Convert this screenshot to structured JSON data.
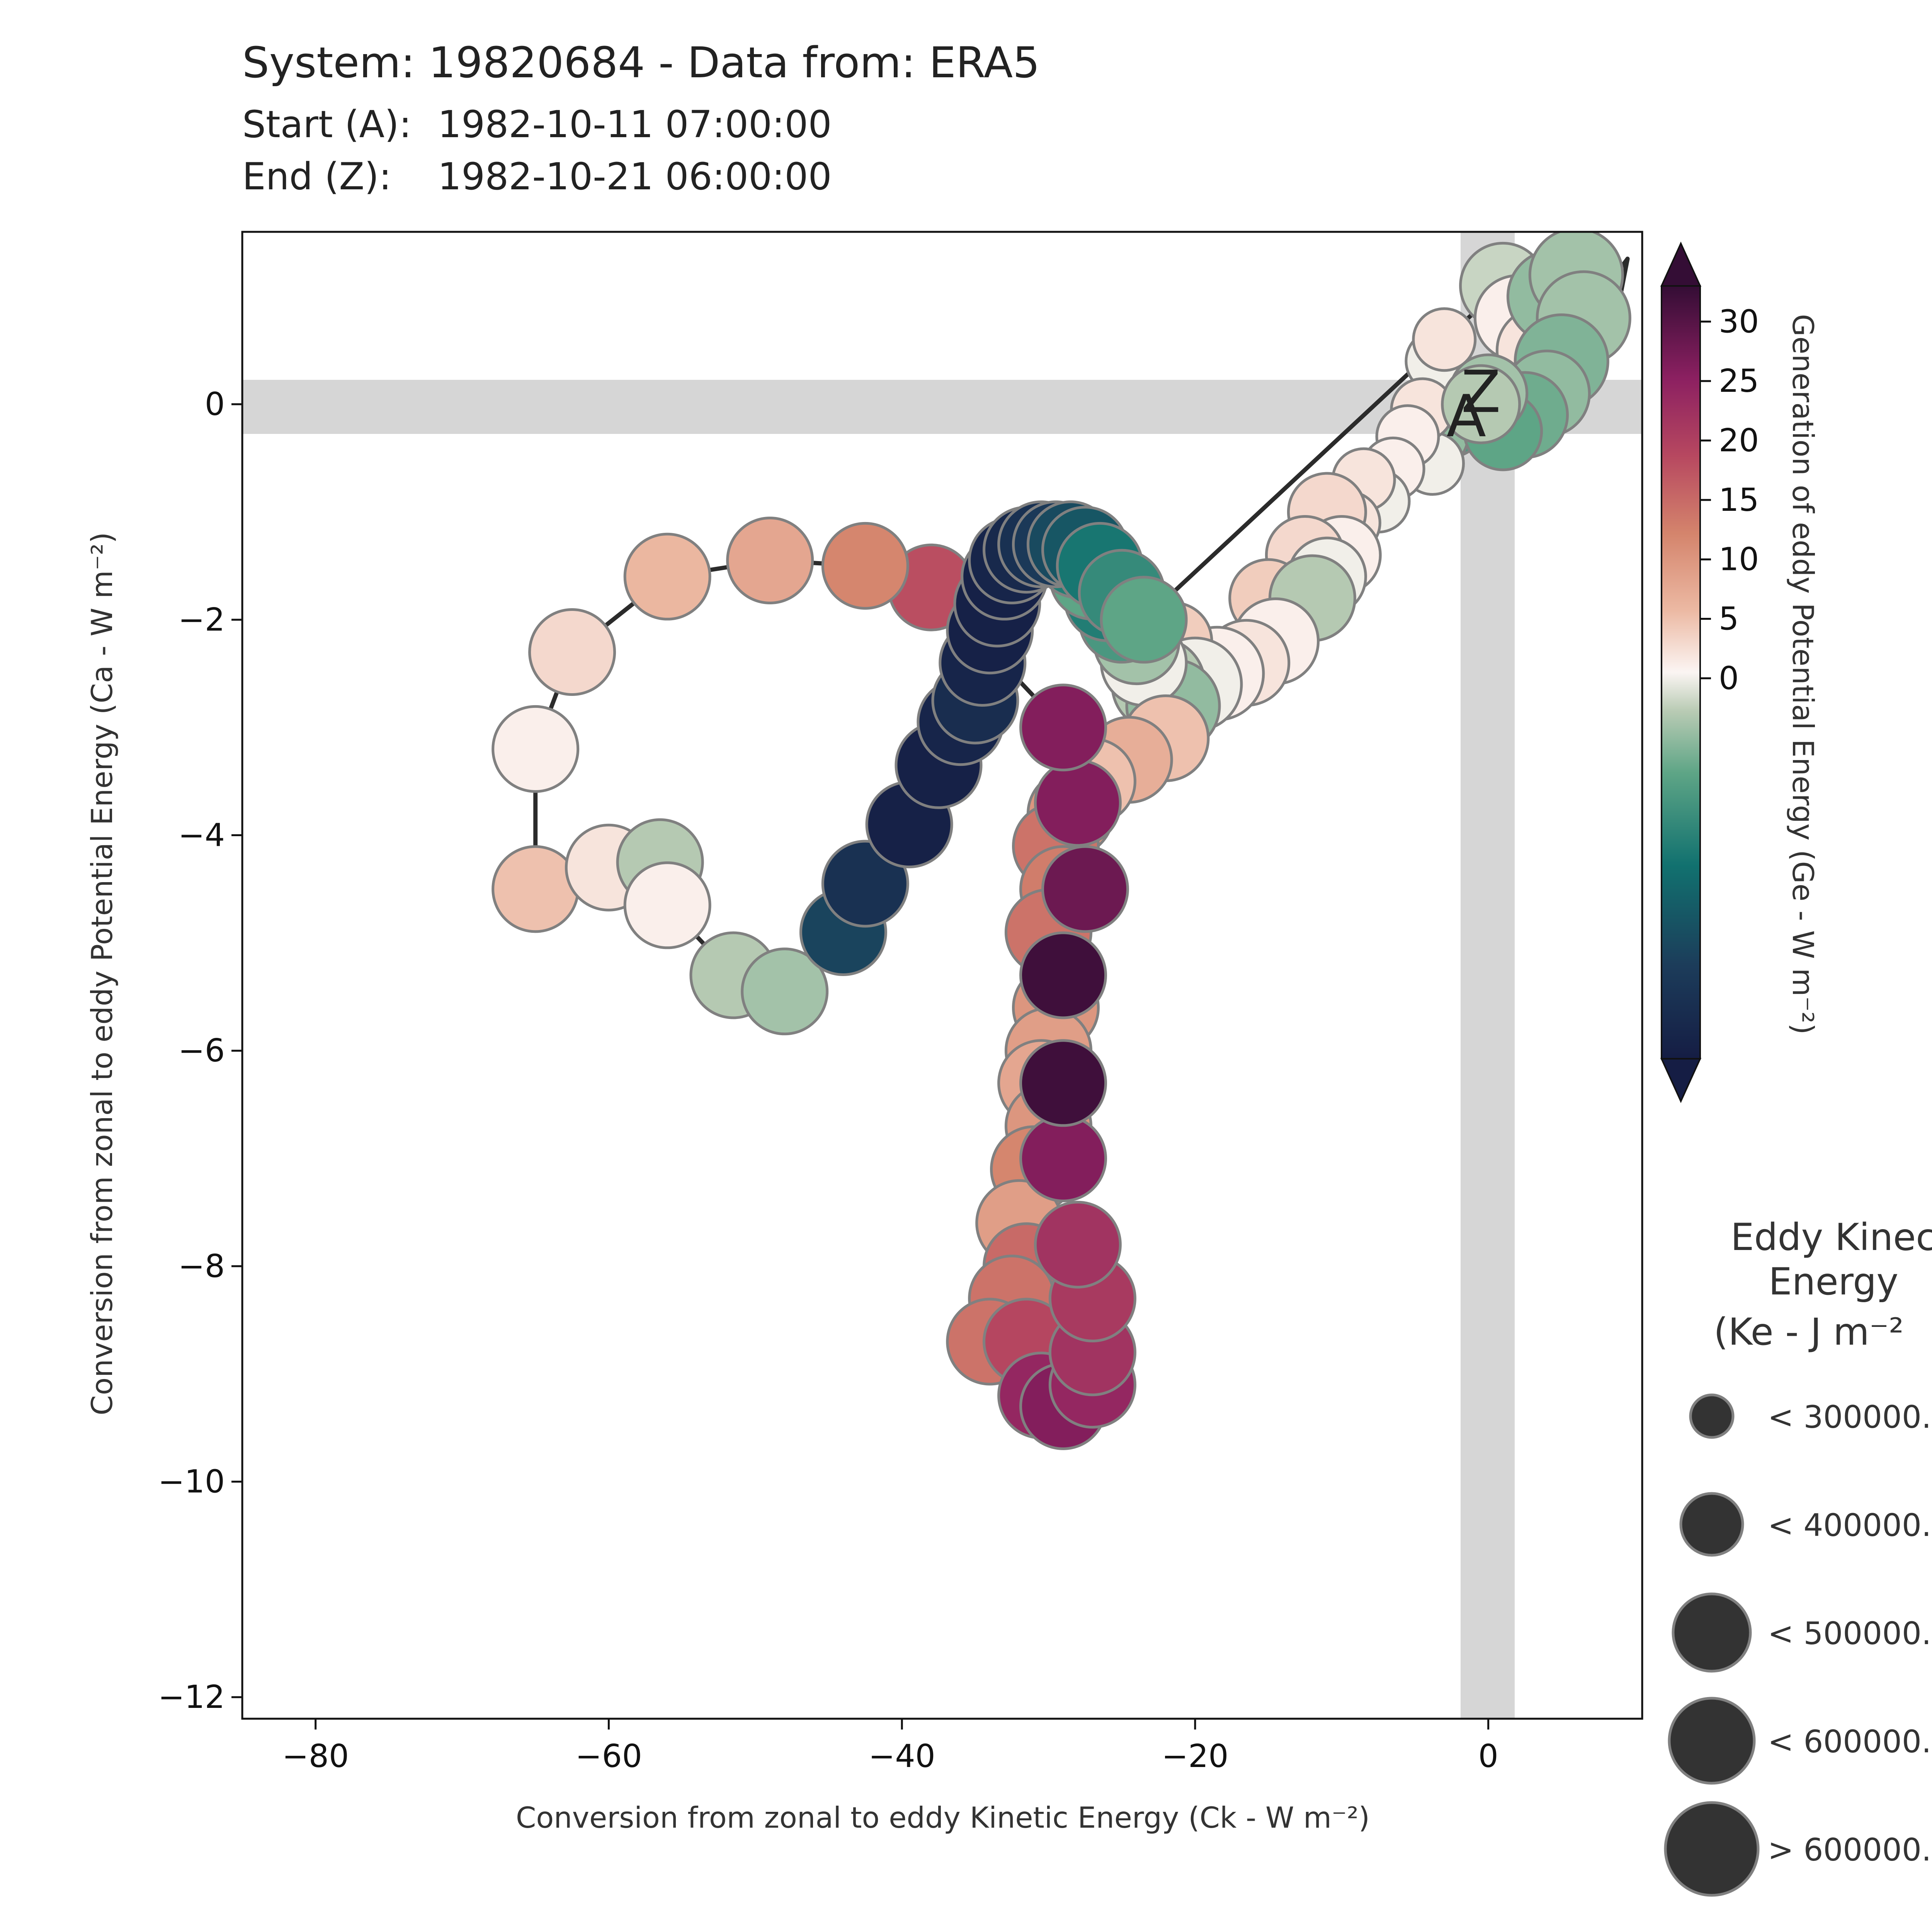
{
  "header": {
    "title": "System: 19820684 - Data from: ERA5",
    "start_label": "Start (A):",
    "start_value": "1982-10-11 07:00:00",
    "end_label": "End (Z):",
    "end_value": "1982-10-21 06:00:00"
  },
  "chart_data": {
    "type": "scatter",
    "title": "System: 19820684 - Data from: ERA5",
    "xlabel": "Conversion from zonal to eddy Kinetic Energy (Ck -  W m⁻²)",
    "ylabel": "Conversion from zonal to eddy Potential Energy (Ca -  W m⁻²)",
    "xlim": [
      -85,
      10.5
    ],
    "ylim": [
      -12.2,
      1.6
    ],
    "x_ticks": [
      -80,
      -60,
      -40,
      -20,
      0
    ],
    "y_ticks": [
      0,
      -2,
      -4,
      -6,
      -8,
      -10,
      -12
    ],
    "x_tick_labels": [
      "−80",
      "−60",
      "−40",
      "−20",
      "0"
    ],
    "y_tick_labels": [
      "0",
      "−2",
      "−4",
      "−6",
      "−8",
      "−10",
      "−12"
    ],
    "start_marker": "A",
    "end_marker": "Z",
    "start_point": {
      "x": -1.5,
      "y": -0.1
    },
    "end_point": {
      "x": -0.5,
      "y": 0.0
    },
    "colorbar": {
      "label": "Generation of eddy Potential Energy (Ge -  W m⁻²)",
      "ticks": [
        0,
        5,
        10,
        15,
        20,
        25,
        30
      ],
      "tick_labels": [
        "0",
        "5",
        "10",
        "15",
        "20",
        "25",
        "30"
      ],
      "min": -32,
      "max": 33,
      "colormap": "curl",
      "extend": "both"
    },
    "size_legend": {
      "title_lines": [
        "Eddy Kinec",
        "Energy",
        "(Ke -  J m⁻²"
      ],
      "entries": [
        "< 300000.",
        "< 400000.",
        "< 500000.",
        "< 600000.",
        "> 600000."
      ],
      "marker_color": "#333333"
    },
    "points": [
      {
        "x": -1.5,
        "y": -0.1,
        "ge": -8,
        "ke": 1
      },
      {
        "x": -2.5,
        "y": -0.2,
        "ge": -10,
        "ke": 1
      },
      {
        "x": -3.5,
        "y": -0.3,
        "ge": -5,
        "ke": 1
      },
      {
        "x": -3.8,
        "y": -0.55,
        "ge": 0,
        "ke": 1
      },
      {
        "x": -3.5,
        "y": 0.4,
        "ge": 0,
        "ke": 1
      },
      {
        "x": -3.0,
        "y": 0.6,
        "ge": 2,
        "ke": 1
      },
      {
        "x": -4.5,
        "y": -0.05,
        "ge": 2,
        "ke": 1
      },
      {
        "x": -5.5,
        "y": -0.3,
        "ge": 1,
        "ke": 1
      },
      {
        "x": -6.5,
        "y": -0.6,
        "ge": 1,
        "ke": 1
      },
      {
        "x": -7.5,
        "y": -0.9,
        "ge": 0,
        "ke": 1
      },
      {
        "x": -8.5,
        "y": -0.7,
        "ge": 2,
        "ke": 1
      },
      {
        "x": -9.5,
        "y": -1.1,
        "ge": 2,
        "ke": 1
      },
      {
        "x": -11.0,
        "y": -1.0,
        "ge": 3,
        "ke": 2
      },
      {
        "x": -10.0,
        "y": -1.4,
        "ge": 1,
        "ke": 2
      },
      {
        "x": -12.5,
        "y": -1.4,
        "ge": 3,
        "ke": 2
      },
      {
        "x": -11.0,
        "y": -1.6,
        "ge": 0,
        "ke": 2
      },
      {
        "x": -15.0,
        "y": -1.8,
        "ge": 4,
        "ke": 2
      },
      {
        "x": -12.0,
        "y": -1.8,
        "ge": -3,
        "ke": 3
      },
      {
        "x": -14.5,
        "y": -2.2,
        "ge": 1,
        "ke": 3
      },
      {
        "x": -16.5,
        "y": -2.4,
        "ge": 2,
        "ke": 3
      },
      {
        "x": -18.5,
        "y": -2.5,
        "ge": 1,
        "ke": 4
      },
      {
        "x": -21.5,
        "y": -2.2,
        "ge": 4,
        "ke": 2
      },
      {
        "x": -20.0,
        "y": -2.6,
        "ge": 0,
        "ke": 4
      },
      {
        "x": -22.5,
        "y": -2.6,
        "ge": -3,
        "ke": 4
      },
      {
        "x": -21.5,
        "y": -2.8,
        "ge": -5,
        "ke": 4
      },
      {
        "x": -23.5,
        "y": -2.4,
        "ge": 0,
        "ke": 3
      },
      {
        "x": -24.0,
        "y": -2.2,
        "ge": -4,
        "ke": 3
      },
      {
        "x": -25.0,
        "y": -2.0,
        "ge": -10,
        "ke": 3
      },
      {
        "x": -26.0,
        "y": -1.8,
        "ge": -14,
        "ke": 3
      },
      {
        "x": -27.0,
        "y": -1.6,
        "ge": -8,
        "ke": 3
      },
      {
        "x": -28.0,
        "y": -1.4,
        "ge": -14,
        "ke": 3
      },
      {
        "x": -22.0,
        "y": -3.1,
        "ge": 5,
        "ke": 3
      },
      {
        "x": -24.5,
        "y": -3.3,
        "ge": 7,
        "ke": 3
      },
      {
        "x": -27.0,
        "y": -3.5,
        "ge": 5,
        "ke": 3
      },
      {
        "x": -28.5,
        "y": -3.8,
        "ge": 10,
        "ke": 3
      },
      {
        "x": -29.5,
        "y": -4.1,
        "ge": 14,
        "ke": 3
      },
      {
        "x": -29.0,
        "y": -4.5,
        "ge": 13,
        "ke": 3
      },
      {
        "x": -30.0,
        "y": -4.9,
        "ge": 14,
        "ke": 3
      },
      {
        "x": -29.5,
        "y": -5.6,
        "ge": 10,
        "ke": 3
      },
      {
        "x": -30.0,
        "y": -6.0,
        "ge": 9,
        "ke": 3
      },
      {
        "x": -30.5,
        "y": -6.3,
        "ge": 8,
        "ke": 3
      },
      {
        "x": -30.0,
        "y": -6.7,
        "ge": 10,
        "ke": 3
      },
      {
        "x": -31.0,
        "y": -7.1,
        "ge": 12,
        "ke": 3
      },
      {
        "x": -32.0,
        "y": -7.6,
        "ge": 9,
        "ke": 3
      },
      {
        "x": -31.5,
        "y": -8.0,
        "ge": 15,
        "ke": 3
      },
      {
        "x": -32.5,
        "y": -8.3,
        "ge": 14,
        "ke": 3
      },
      {
        "x": -34.0,
        "y": -8.7,
        "ge": 14,
        "ke": 3
      },
      {
        "x": -31.5,
        "y": -8.7,
        "ge": 19,
        "ke": 3
      },
      {
        "x": -30.5,
        "y": -9.2,
        "ge": 24,
        "ke": 3
      },
      {
        "x": -29.0,
        "y": -9.3,
        "ge": 26,
        "ke": 3
      },
      {
        "x": -27.0,
        "y": -9.1,
        "ge": 24,
        "ke": 3
      },
      {
        "x": -27.0,
        "y": -8.8,
        "ge": 22,
        "ke": 3
      },
      {
        "x": -27.0,
        "y": -8.3,
        "ge": 21,
        "ke": 3
      },
      {
        "x": -28.0,
        "y": -7.8,
        "ge": 22,
        "ke": 3
      },
      {
        "x": -29.0,
        "y": -7.0,
        "ge": 26,
        "ke": 3
      },
      {
        "x": -29.0,
        "y": -6.3,
        "ge": 32,
        "ke": 3
      },
      {
        "x": -29.0,
        "y": -5.3,
        "ge": 32,
        "ke": 3
      },
      {
        "x": -27.5,
        "y": -4.5,
        "ge": 28,
        "ke": 3
      },
      {
        "x": -28.0,
        "y": -3.7,
        "ge": 26,
        "ke": 3
      },
      {
        "x": -29.0,
        "y": -3.0,
        "ge": 26,
        "ke": 3
      },
      {
        "x": -38.0,
        "y": -1.7,
        "ge": 18,
        "ke": 3
      },
      {
        "x": -42.5,
        "y": -1.5,
        "ge": 12,
        "ke": 3
      },
      {
        "x": -49.0,
        "y": -1.45,
        "ge": 8,
        "ke": 3
      },
      {
        "x": -56.0,
        "y": -1.6,
        "ge": 6,
        "ke": 3
      },
      {
        "x": -62.5,
        "y": -2.3,
        "ge": 3,
        "ke": 3
      },
      {
        "x": -65.0,
        "y": -3.2,
        "ge": 1,
        "ke": 3
      },
      {
        "x": -65.0,
        "y": -4.5,
        "ge": 5,
        "ke": 3
      },
      {
        "x": -60.0,
        "y": -4.3,
        "ge": 2,
        "ke": 3
      },
      {
        "x": -56.5,
        "y": -4.25,
        "ge": -3,
        "ke": 3
      },
      {
        "x": -56.0,
        "y": -4.65,
        "ge": 1,
        "ke": 3
      },
      {
        "x": -51.5,
        "y": -5.3,
        "ge": -3,
        "ke": 3
      },
      {
        "x": -48.0,
        "y": -5.45,
        "ge": -4,
        "ke": 3
      },
      {
        "x": -44.0,
        "y": -4.9,
        "ge": -23,
        "ke": 3
      },
      {
        "x": -42.5,
        "y": -4.45,
        "ge": -27,
        "ke": 3
      },
      {
        "x": -39.5,
        "y": -3.9,
        "ge": -31,
        "ke": 3
      },
      {
        "x": -37.5,
        "y": -3.35,
        "ge": -31,
        "ke": 3
      },
      {
        "x": -36.0,
        "y": -2.95,
        "ge": -30,
        "ke": 3
      },
      {
        "x": -35.0,
        "y": -2.75,
        "ge": -28,
        "ke": 3
      },
      {
        "x": -34.5,
        "y": -2.4,
        "ge": -30,
        "ke": 3
      },
      {
        "x": -34.0,
        "y": -2.1,
        "ge": -31,
        "ke": 3
      },
      {
        "x": -33.5,
        "y": -1.85,
        "ge": -31,
        "ke": 3
      },
      {
        "x": -33.0,
        "y": -1.6,
        "ge": -31,
        "ke": 3
      },
      {
        "x": -32.5,
        "y": -1.45,
        "ge": -30,
        "ke": 3
      },
      {
        "x": -31.5,
        "y": -1.35,
        "ge": -29,
        "ke": 3
      },
      {
        "x": -30.5,
        "y": -1.3,
        "ge": -27,
        "ke": 3
      },
      {
        "x": -29.5,
        "y": -1.3,
        "ge": -25,
        "ke": 3
      },
      {
        "x": -28.5,
        "y": -1.3,
        "ge": -22,
        "ke": 3
      },
      {
        "x": -27.5,
        "y": -1.35,
        "ge": -20,
        "ke": 3
      },
      {
        "x": -26.5,
        "y": -1.5,
        "ge": -15,
        "ke": 3
      },
      {
        "x": -25.0,
        "y": -1.75,
        "ge": -12,
        "ke": 3
      },
      {
        "x": -23.5,
        "y": -2.0,
        "ge": -8,
        "ke": 3
      },
      {
        "x": 1.0,
        "y": 1.1,
        "ge": -2,
        "ke": 3
      },
      {
        "x": 2.0,
        "y": 0.8,
        "ge": 1,
        "ke": 3
      },
      {
        "x": 3.5,
        "y": 0.5,
        "ge": 2,
        "ke": 3
      },
      {
        "x": 4.5,
        "y": 1.0,
        "ge": -5,
        "ke": 4
      },
      {
        "x": 6.0,
        "y": 1.2,
        "ge": -4,
        "ke": 4
      },
      {
        "x": 7.5,
        "y": 1.3,
        "ge": -6,
        "ke": 5
      },
      {
        "x": 8.5,
        "y": 1.25,
        "ge": -3,
        "ke": 5
      },
      {
        "x": 9.0,
        "y": 1.0,
        "ge": -7,
        "ke": 5
      },
      {
        "x": 9.5,
        "y": 1.35,
        "ge": 1,
        "ke": 5
      },
      {
        "x": 6.5,
        "y": 0.8,
        "ge": -4,
        "ke": 4
      },
      {
        "x": 5.0,
        "y": 0.4,
        "ge": -6,
        "ke": 4
      },
      {
        "x": 4.0,
        "y": 0.1,
        "ge": -5,
        "ke": 3
      },
      {
        "x": 2.5,
        "y": -0.1,
        "ge": -7,
        "ke": 3
      },
      {
        "x": 1.0,
        "y": -0.25,
        "ge": -8,
        "ke": 2
      },
      {
        "x": 0.0,
        "y": 0.1,
        "ge": -4,
        "ke": 2
      },
      {
        "x": -0.5,
        "y": 0.0,
        "ge": -3,
        "ke": 2
      }
    ]
  }
}
